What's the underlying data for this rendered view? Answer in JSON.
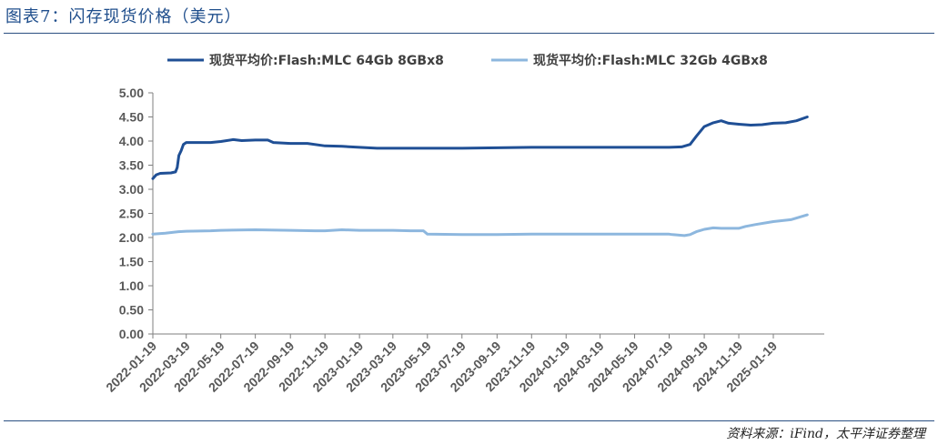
{
  "figure": {
    "title": "图表7：闪存现货价格（美元）",
    "source": "资料来源：iFind，太平洋证券整理"
  },
  "colors": {
    "series_dark": "#1f4f95",
    "series_light": "#8db7de",
    "axis": "#7f7f7f"
  },
  "chart_data": {
    "type": "line",
    "title": "",
    "xlabel": "",
    "ylabel": "",
    "ylim": [
      0,
      5
    ],
    "xlim": [
      "2022-01-19",
      "2025-04-19"
    ],
    "grid": false,
    "legend_position": "top",
    "y_ticks": [
      "0.00",
      "0.50",
      "1.00",
      "1.50",
      "2.00",
      "2.50",
      "3.00",
      "3.50",
      "4.00",
      "4.50",
      "5.00"
    ],
    "x_ticks": [
      "2022-01-19",
      "2022-03-19",
      "2022-05-19",
      "2022-07-19",
      "2022-09-19",
      "2022-11-19",
      "2023-01-19",
      "2023-03-19",
      "2023-05-19",
      "2023-07-19",
      "2023-09-19",
      "2023-11-19",
      "2024-01-19",
      "2024-03-19",
      "2024-05-19",
      "2024-07-19",
      "2024-09-19",
      "2024-11-19",
      "2025-01-19"
    ],
    "series": [
      {
        "name": "现货平均价:Flash:MLC 64Gb 8GBx8",
        "color": "#1f4f95",
        "points": [
          [
            "2022-01-19",
            3.22
          ],
          [
            "2022-01-25",
            3.3
          ],
          [
            "2022-02-01",
            3.33
          ],
          [
            "2022-02-20",
            3.34
          ],
          [
            "2022-02-28",
            3.36
          ],
          [
            "2022-03-03",
            3.45
          ],
          [
            "2022-03-06",
            3.7
          ],
          [
            "2022-03-10",
            3.8
          ],
          [
            "2022-03-14",
            3.93
          ],
          [
            "2022-03-19",
            3.97
          ],
          [
            "2022-04-01",
            3.97
          ],
          [
            "2022-05-01",
            3.97
          ],
          [
            "2022-05-19",
            3.99
          ],
          [
            "2022-06-10",
            4.03
          ],
          [
            "2022-06-25",
            4.01
          ],
          [
            "2022-07-19",
            4.02
          ],
          [
            "2022-08-10",
            4.02
          ],
          [
            "2022-08-20",
            3.97
          ],
          [
            "2022-09-19",
            3.95
          ],
          [
            "2022-10-19",
            3.95
          ],
          [
            "2022-11-19",
            3.9
          ],
          [
            "2022-12-19",
            3.89
          ],
          [
            "2023-01-19",
            3.87
          ],
          [
            "2023-02-19",
            3.85
          ],
          [
            "2023-03-19",
            3.85
          ],
          [
            "2023-05-19",
            3.85
          ],
          [
            "2023-07-19",
            3.85
          ],
          [
            "2023-09-19",
            3.86
          ],
          [
            "2023-11-19",
            3.87
          ],
          [
            "2024-01-19",
            3.87
          ],
          [
            "2024-03-19",
            3.87
          ],
          [
            "2024-05-19",
            3.87
          ],
          [
            "2024-07-19",
            3.87
          ],
          [
            "2024-08-10",
            3.88
          ],
          [
            "2024-08-25",
            3.93
          ],
          [
            "2024-09-05",
            4.1
          ],
          [
            "2024-09-19",
            4.3
          ],
          [
            "2024-10-05",
            4.38
          ],
          [
            "2024-10-19",
            4.42
          ],
          [
            "2024-11-01",
            4.37
          ],
          [
            "2024-11-19",
            4.35
          ],
          [
            "2024-12-10",
            4.33
          ],
          [
            "2024-12-30",
            4.34
          ],
          [
            "2025-01-19",
            4.37
          ],
          [
            "2025-02-10",
            4.38
          ],
          [
            "2025-03-01",
            4.42
          ],
          [
            "2025-03-20",
            4.5
          ]
        ]
      },
      {
        "name": "现货平均价:Flash:MLC 32Gb 4GBx8",
        "color": "#8db7de",
        "points": [
          [
            "2022-01-19",
            2.07
          ],
          [
            "2022-02-10",
            2.09
          ],
          [
            "2022-03-05",
            2.12
          ],
          [
            "2022-03-19",
            2.13
          ],
          [
            "2022-05-01",
            2.14
          ],
          [
            "2022-05-19",
            2.15
          ],
          [
            "2022-07-19",
            2.16
          ],
          [
            "2022-09-19",
            2.15
          ],
          [
            "2022-11-01",
            2.14
          ],
          [
            "2022-11-19",
            2.14
          ],
          [
            "2022-12-19",
            2.16
          ],
          [
            "2023-01-19",
            2.15
          ],
          [
            "2023-03-19",
            2.15
          ],
          [
            "2023-04-19",
            2.14
          ],
          [
            "2023-05-12",
            2.14
          ],
          [
            "2023-05-19",
            2.07
          ],
          [
            "2023-07-19",
            2.06
          ],
          [
            "2023-09-19",
            2.06
          ],
          [
            "2023-11-19",
            2.07
          ],
          [
            "2024-01-19",
            2.07
          ],
          [
            "2024-03-19",
            2.07
          ],
          [
            "2024-05-19",
            2.07
          ],
          [
            "2024-07-19",
            2.07
          ],
          [
            "2024-07-25",
            2.06
          ],
          [
            "2024-08-15",
            2.04
          ],
          [
            "2024-08-25",
            2.06
          ],
          [
            "2024-09-05",
            2.12
          ],
          [
            "2024-09-19",
            2.17
          ],
          [
            "2024-10-05",
            2.2
          ],
          [
            "2024-10-19",
            2.19
          ],
          [
            "2024-11-19",
            2.19
          ],
          [
            "2024-12-01",
            2.23
          ],
          [
            "2024-12-19",
            2.27
          ],
          [
            "2025-01-19",
            2.33
          ],
          [
            "2025-02-19",
            2.37
          ],
          [
            "2025-03-20",
            2.47
          ]
        ]
      }
    ]
  }
}
